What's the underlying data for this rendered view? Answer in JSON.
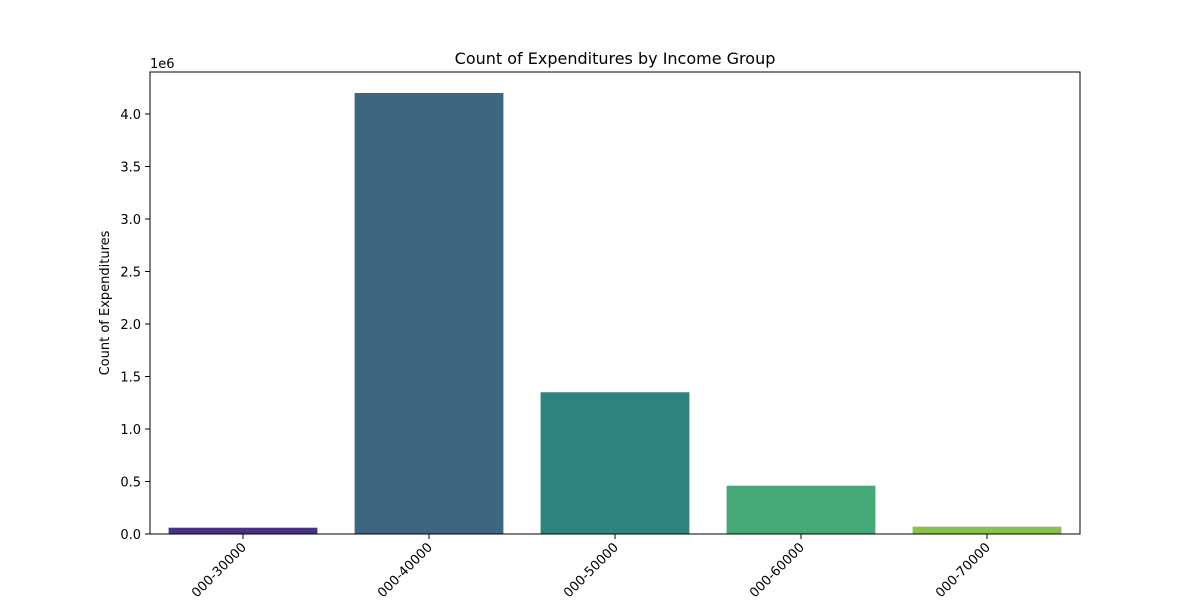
{
  "chart_data": {
    "type": "bar",
    "title": "Count of Expenditures by Income Group",
    "xlabel": "",
    "ylabel": "Count of Expenditures",
    "y_offset_label": "1e6",
    "ylim": [
      0,
      4.4
    ],
    "y_scale": 1000000,
    "yticks": [
      0.0,
      0.5,
      1.0,
      1.5,
      2.0,
      2.5,
      3.0,
      3.5,
      4.0
    ],
    "ytick_labels": [
      "0.0",
      "0.5",
      "1.0",
      "1.5",
      "2.0",
      "2.5",
      "3.0",
      "3.5",
      "4.0"
    ],
    "categories": [
      "000-30000",
      "000-40000",
      "000-50000",
      "000-60000",
      "000-70000"
    ],
    "values": [
      60000,
      4200000,
      1350000,
      460000,
      70000
    ],
    "colors": [
      "#463480",
      "#3e6680",
      "#2e837e",
      "#48a978",
      "#89c150"
    ],
    "grid": false,
    "legend": "none"
  }
}
